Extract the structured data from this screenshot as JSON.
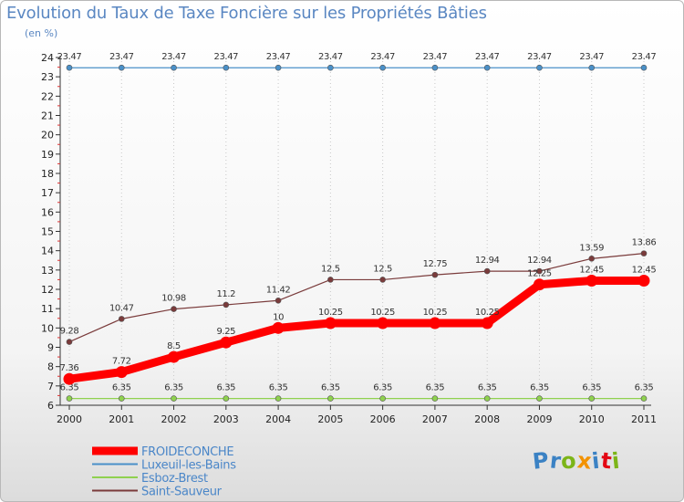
{
  "title": "Evolution du Taux de Taxe Foncière sur les Propriétés Bâties",
  "subtitle": "(en %)",
  "logo": {
    "text": "Proxiti",
    "letter_colors": [
      "#3b82c4",
      "#3b82c4",
      "#7cb518",
      "#f39200",
      "#3b82c4",
      "#e30613",
      "#7cb518"
    ]
  },
  "chart_data": {
    "type": "line",
    "title": "Evolution du Taux de Taxe Foncière sur les Propriétés Bâties",
    "ylabel": "(en %)",
    "xlabel": "",
    "x": [
      "2000",
      "2001",
      "2002",
      "2003",
      "2004",
      "2005",
      "2006",
      "2007",
      "2008",
      "2009",
      "2010",
      "2011"
    ],
    "ylim": [
      6,
      24
    ],
    "yticks": [
      "6",
      "7",
      "8",
      "9",
      "10",
      "11",
      "12",
      "13",
      "14",
      "15",
      "16",
      "17",
      "18",
      "19",
      "20",
      "21",
      "22",
      "23",
      "24"
    ],
    "legend_position": "bottom-left",
    "series": [
      {
        "name": "Luxeuil-les-Bains",
        "color": "#4a90c8",
        "emphasis": "normal",
        "values": [
          23.47,
          23.47,
          23.47,
          23.47,
          23.47,
          23.47,
          23.47,
          23.47,
          23.47,
          23.47,
          23.47,
          23.47
        ],
        "labels": [
          "23.47",
          "23.47",
          "23.47",
          "23.47",
          "23.47",
          "23.47",
          "23.47",
          "23.47",
          "23.47",
          "23.47",
          "23.47",
          "23.47"
        ]
      },
      {
        "name": "Esboz-Brest",
        "color": "#8fd14f",
        "emphasis": "normal",
        "values": [
          6.35,
          6.35,
          6.35,
          6.35,
          6.35,
          6.35,
          6.35,
          6.35,
          6.35,
          6.35,
          6.35,
          6.35
        ],
        "labels": [
          "6.35",
          "6.35",
          "6.35",
          "6.35",
          "6.35",
          "6.35",
          "6.35",
          "6.35",
          "6.35",
          "6.35",
          "6.35",
          "6.35"
        ]
      },
      {
        "name": "Saint-Sauveur",
        "color": "#7a3b3b",
        "emphasis": "normal",
        "values": [
          9.28,
          10.47,
          10.98,
          11.2,
          11.42,
          12.5,
          12.5,
          12.75,
          12.94,
          12.94,
          13.59,
          13.86
        ],
        "labels": [
          "9.28",
          "10.47",
          "10.98",
          "11.2",
          "11.42",
          "12.5",
          "12.5",
          "12.75",
          "12.94",
          "12.94",
          "13.59",
          "13.86"
        ]
      },
      {
        "name": "FROIDECONCHE",
        "color": "#ff0000",
        "emphasis": "bold",
        "values": [
          7.36,
          7.72,
          8.5,
          9.25,
          10,
          10.25,
          10.25,
          10.25,
          10.25,
          12.25,
          12.45,
          12.45
        ],
        "labels": [
          "7.36",
          "7.72",
          "8.5",
          "9.25",
          "10",
          "10.25",
          "10.25",
          "10.25",
          "10.25",
          "12.25",
          "12.45",
          "12.45"
        ]
      }
    ],
    "legend_order": [
      "FROIDECONCHE",
      "Luxeuil-les-Bains",
      "Esboz-Brest",
      "Saint-Sauveur"
    ]
  }
}
